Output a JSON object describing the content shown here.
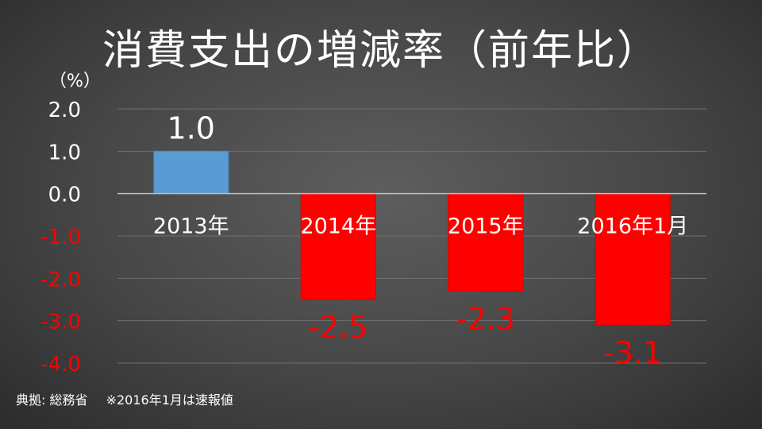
{
  "title": "消費支出の増減率（前年比）",
  "unit_label": "（%）",
  "source": "典拠: 総務省",
  "note": "※2016年1月は速報値",
  "colors": {
    "positive": "#5b9bd5",
    "negative": "#ff0000",
    "text": "#ffffff",
    "grid": "#6f6f6f",
    "axis": "#bfbfbf"
  },
  "chart_data": {
    "type": "bar",
    "title": "消費支出の増減率（前年比）",
    "ylabel": "（%）",
    "categories": [
      "2013年",
      "2014年",
      "2015年",
      "2016年1月"
    ],
    "values": [
      1.0,
      -2.5,
      -2.3,
      -3.1
    ],
    "value_labels": [
      "1.0",
      "-2.5",
      "-2.3",
      "-3.1"
    ],
    "ylim": [
      -4.0,
      2.0
    ],
    "yticks": [
      2.0,
      1.0,
      0.0,
      -1.0,
      -2.0,
      -3.0,
      -4.0
    ],
    "ytick_labels": [
      "2.0",
      "1.0",
      "0.0",
      "-1.0",
      "-2.0",
      "-3.0",
      "-4.0"
    ],
    "grid": true,
    "legend": "none"
  }
}
